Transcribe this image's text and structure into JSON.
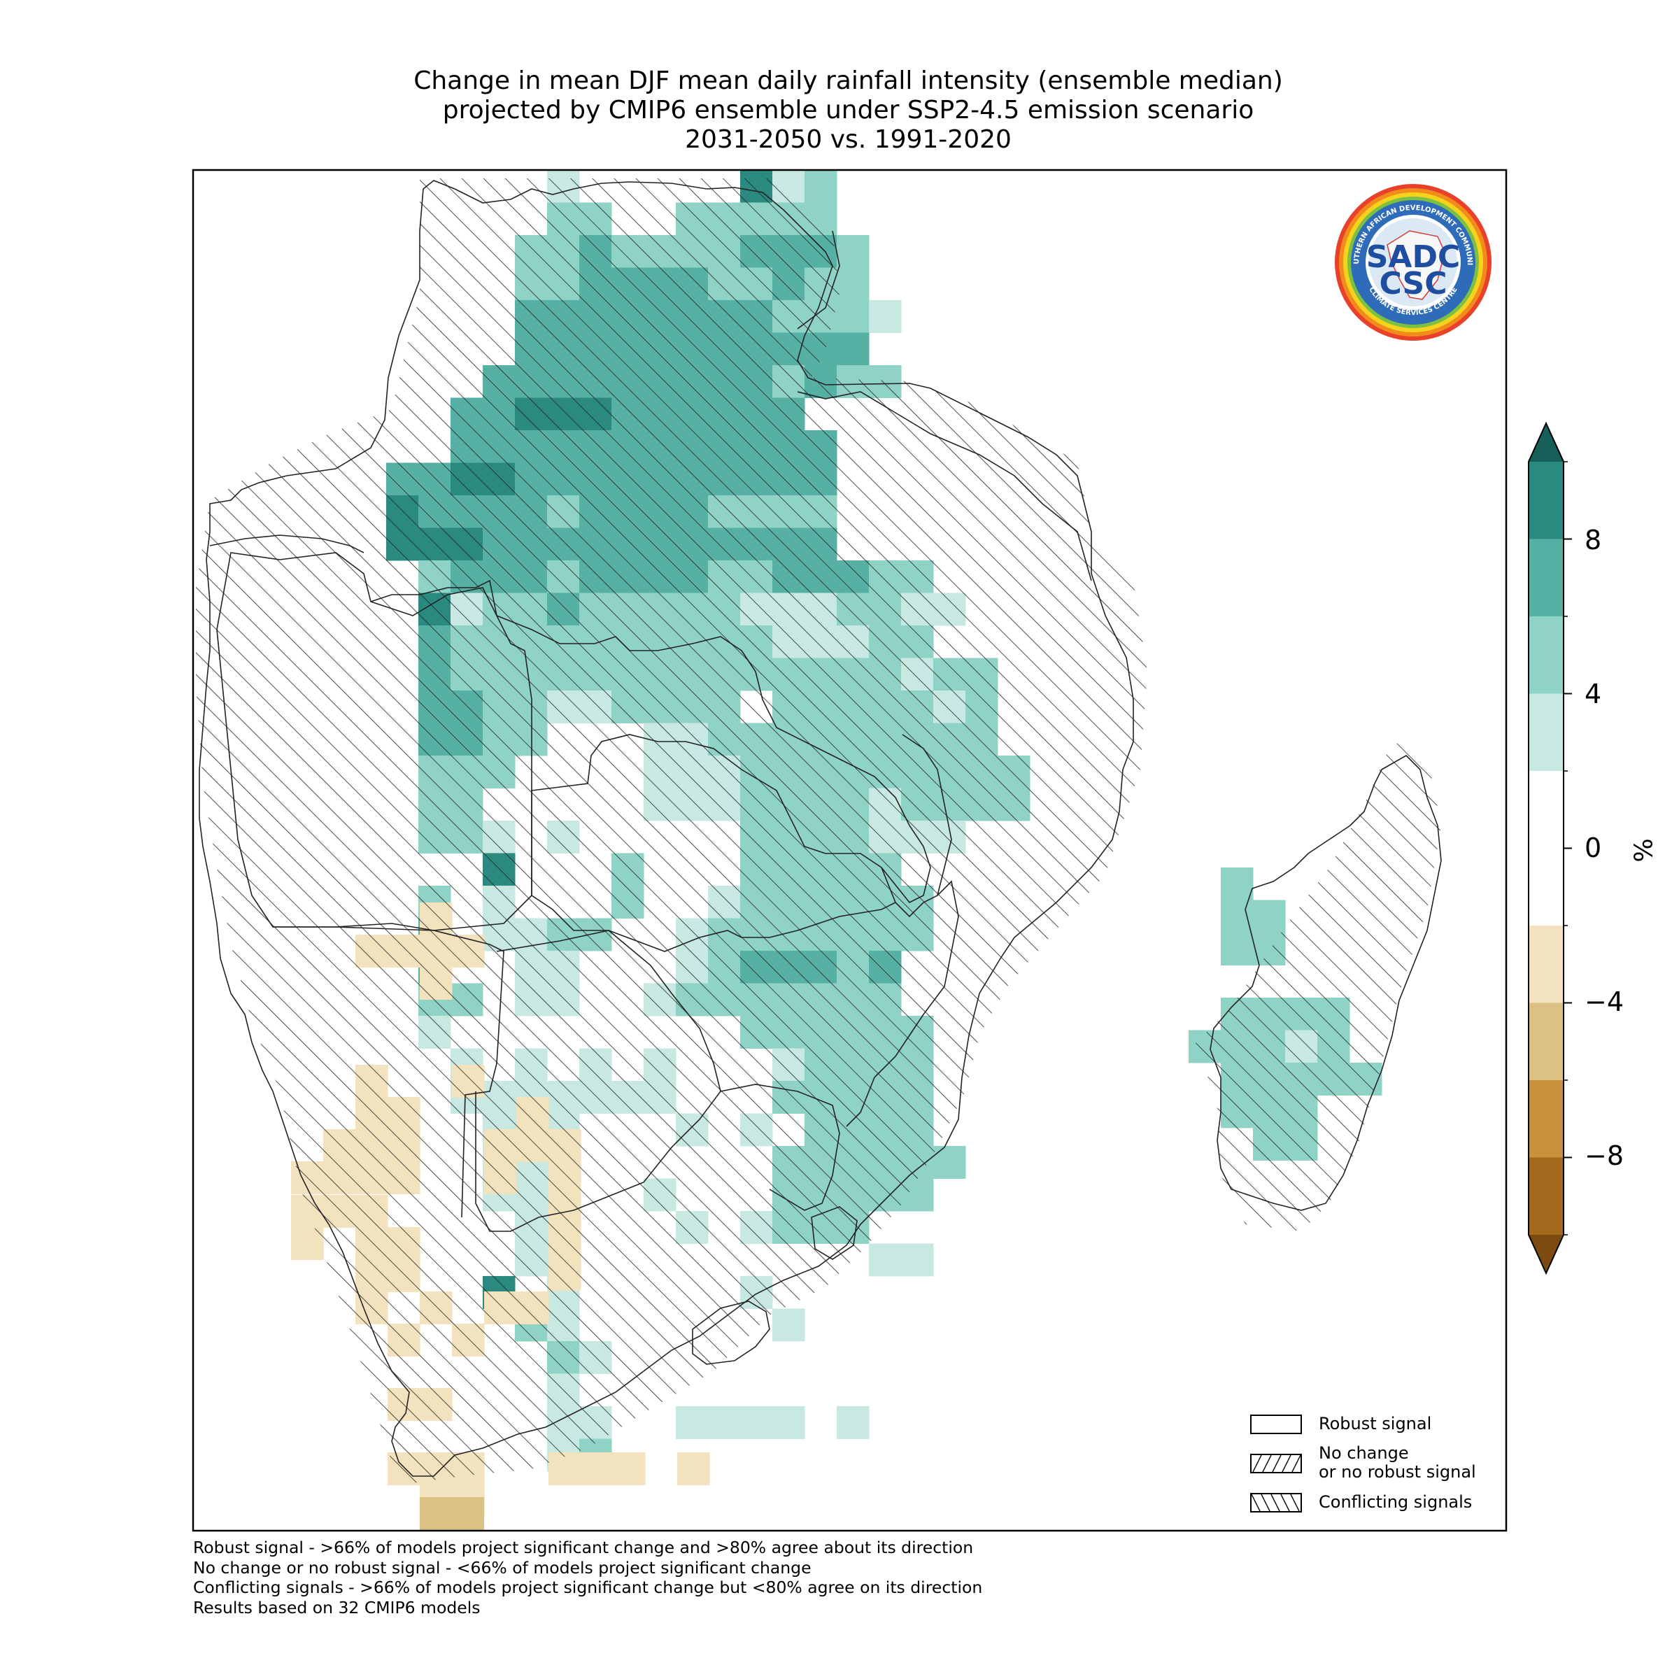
{
  "title": {
    "line1": "Change in mean DJF mean daily rainfall intensity (ensemble median)",
    "line2": "projected by CMIP6 ensemble under SSP2-4.5 emission scenario",
    "line3": "2031-2050 vs. 1991-2020"
  },
  "logo": {
    "ring_text_top": "SOUTHERN AFRICAN DEVELOPMENT COMMUNITY",
    "ring_text_bottom": "CLIMATE SERVICES CENTRE",
    "mark_top": "SADC",
    "mark_bottom": "CSC"
  },
  "colorbar": {
    "unit_label": "%",
    "ticks": [
      "8",
      "4",
      "0",
      "−4",
      "−8"
    ],
    "levels": [
      -10,
      -8,
      -6,
      -4,
      -2,
      2,
      4,
      6,
      8,
      10
    ],
    "colors": [
      "#a36a1e",
      "#c8913c",
      "#dcc282",
      "#f2e2be",
      "#ffffff",
      "#c8e8e2",
      "#8fd3c6",
      "#56b0a3",
      "#2b8a80"
    ],
    "extend_low_color": "#7d4b0f",
    "extend_high_color": "#175f59"
  },
  "legend": {
    "robust": "Robust signal",
    "no_change_line1": "No change",
    "no_change_line2": "or no robust signal",
    "conflicting": "Conflicting signals"
  },
  "footnotes": [
    "Robust signal - >66% of models project significant change and >80% agree about its direction",
    "No change or no robust signal - <66% of models project significant change",
    "Conflicting signals - >66% of models project significant change but <80% agree on its direction",
    "Results based on 32 CMIP6 models"
  ],
  "colors": {
    "green_1": "#c8e8e2",
    "green_2": "#8fd3c6",
    "green_3": "#56b0a3",
    "green_4": "#2b8a80",
    "tan_1": "#f2e2be",
    "tan_2": "#dcc282",
    "white": "#ffffff"
  },
  "grid": {
    "rows": [
      "...........1.....412......",
      "...........22..22222......",
      "..........22322223332.....",
      "..........22333322322.....",
      "..........333333332221....",
      "..........33333333333.....",
      ".........3333333332322....",
      "........33444333333......",
      "........333333333333......",
      "......33443333333333......",
      "......43333233332222......",
      "......44433333333333......",
      ".......2333233332233322...",
      ".......41223222221112211..",
      ".......3222222222211122...",
      ".......322222222222222122.",
      ".......3322112222.2222212.",
      ".......3322...11222222222.",
      ".......222....111222222222",
      ".......22.....111222212222",
      ".......221.1.....2222111..",
      ".........4...2...22222....",
      ".......2.1...2..1222222...",
      ".......3.1122..12222222...",
      ".......3..11...1233323....",
      ".......22.11..12222222....",
      ".......1.........222222...",
      "........1.1.1.1...12222...",
      "........1111111...22222...",
      ".........111...1.1.2222...",
      ".........111......222222..",
      ".........111..1...22222...",
      "..........11...1.1222.....",
      "..........11.........11...",
      ".........4.1.....1........",
      "..........21......1.......",
      "...........21.............",
      "...........1..............",
      "...........11..1111.1.....",
      "...........12............."
    ],
    "madagascar_rows": [
      ".2....",
      ".22...",
      ".22...",
      "......",
      ".2222.",
      "22212.",
      ".22222",
      ".222..",
      "..22.."
    ]
  }
}
